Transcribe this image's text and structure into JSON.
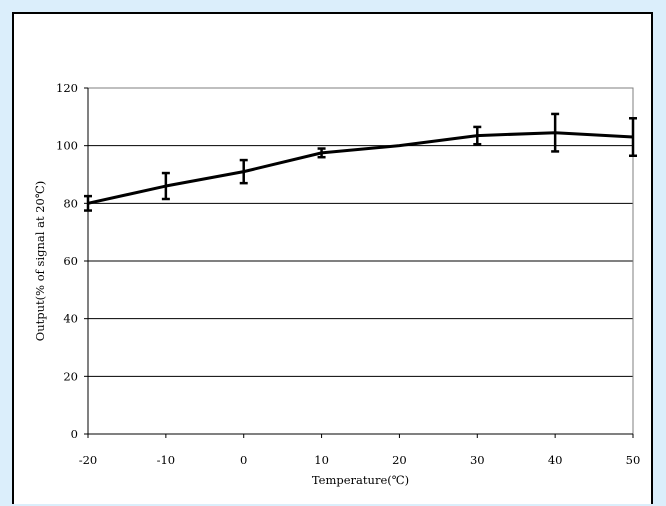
{
  "chart_data": {
    "type": "line",
    "xlabel": "Temperature(℃)",
    "ylabel": "Output(% of signal at 20℃)",
    "xlim": [
      -20,
      50
    ],
    "ylim": [
      0,
      120
    ],
    "x_ticks": [
      "-20",
      "-10",
      "0",
      "10",
      "20",
      "30",
      "40",
      "50"
    ],
    "y_ticks": [
      "0",
      "20",
      "40",
      "60",
      "80",
      "100",
      "120"
    ],
    "grid": "horizontal",
    "series": [
      {
        "x": [
          -20,
          -10,
          0,
          10,
          20,
          30,
          40,
          50
        ],
        "y": [
          80,
          86,
          91,
          97.5,
          100,
          103.5,
          104.5,
          103
        ],
        "error": [
          2.5,
          4.5,
          4,
          1.5,
          null,
          3,
          6.5,
          6.5
        ]
      }
    ],
    "colors": {
      "line": "#000000",
      "grid": "#000000",
      "background": "#ffffff"
    }
  }
}
